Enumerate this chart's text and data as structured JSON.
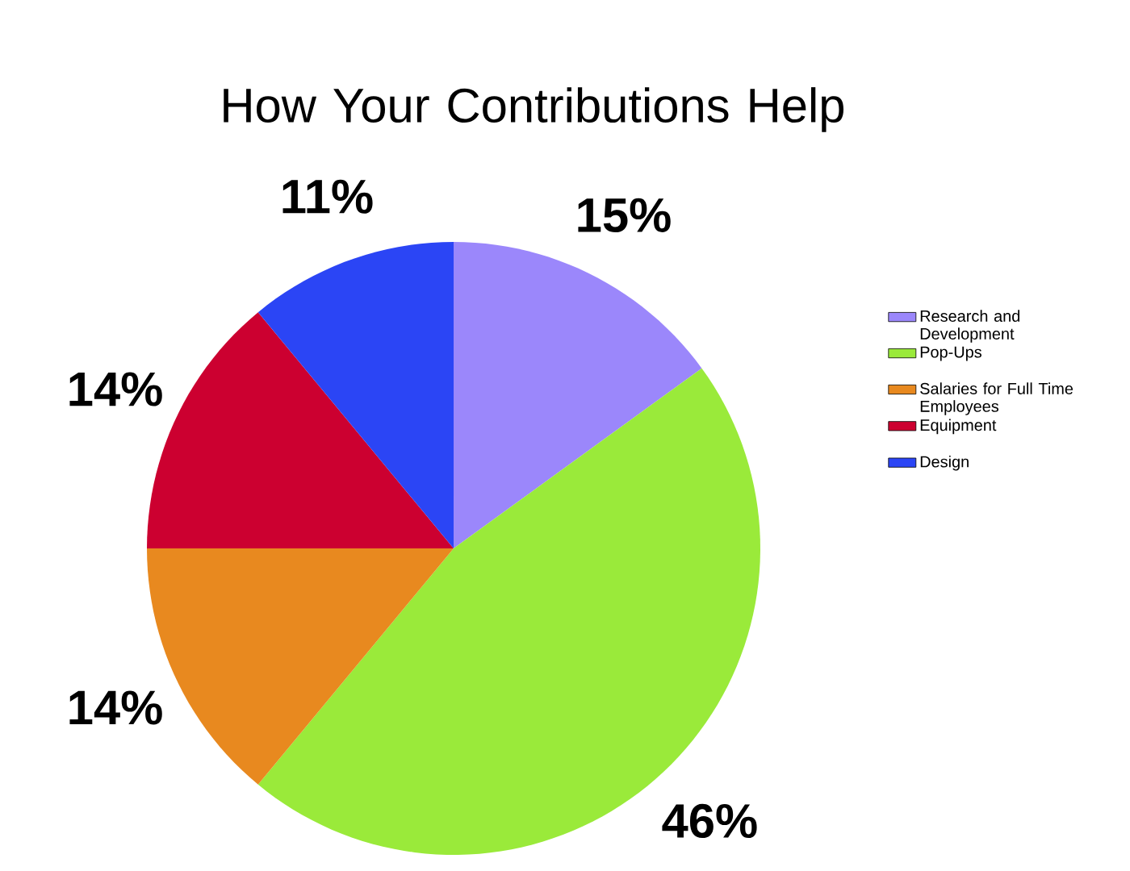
{
  "chart_data": {
    "type": "pie",
    "title": "How Your Contributions Help",
    "categories": [
      "Research and Development",
      "Pop-Ups",
      "Salaries for Full Time Employees",
      "Equipment",
      "Design"
    ],
    "values": [
      15,
      46,
      14,
      14,
      11
    ],
    "value_labels": [
      "15%",
      "46%",
      "14%",
      "14%",
      "11%"
    ],
    "colors": [
      "#9b87fb",
      "#9aea3a",
      "#e8891f",
      "#cc0030",
      "#2b45f5"
    ],
    "legend": "right"
  }
}
